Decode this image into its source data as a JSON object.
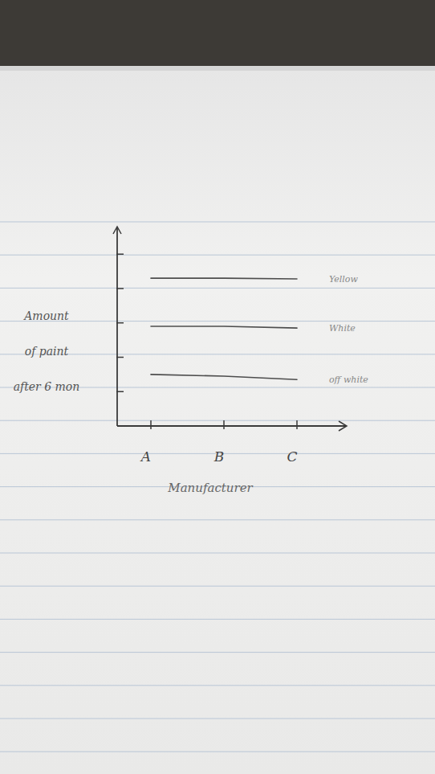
{
  "chart_data": {
    "type": "line",
    "x_label": "Manufacturer",
    "y_label": "Amount of paint after 6 mon",
    "categories": [
      "A",
      "B",
      "C"
    ],
    "series": [
      {
        "name": "Yellow",
        "color": "#4d4d4d",
        "values": [
          4.3,
          4.3,
          4.28
        ]
      },
      {
        "name": "White",
        "color": "#4d4d4d",
        "values": [
          2.9,
          2.9,
          2.85
        ]
      },
      {
        "name": "off white",
        "color": "#4d4d4d",
        "values": [
          1.5,
          1.45,
          1.35
        ]
      }
    ],
    "ylim": [
      0,
      5.8
    ],
    "yticks": [
      1,
      2,
      3,
      4,
      5
    ],
    "tick_labels": "x",
    "grid": false
  }
}
